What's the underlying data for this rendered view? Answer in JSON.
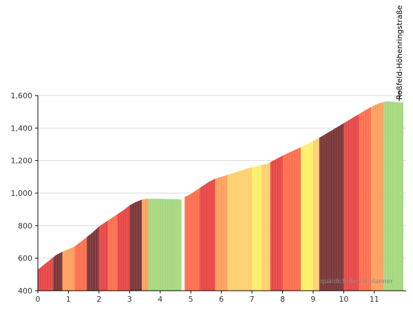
{
  "chart_data": {
    "type": "area",
    "title": "",
    "xlabel": "",
    "ylabel": "",
    "xlim": [
      0,
      12
    ],
    "ylim": [
      400,
      1600
    ],
    "x_ticks": [
      0,
      1,
      2,
      3,
      4,
      5,
      6,
      7,
      8,
      9,
      10,
      11
    ],
    "x_tick_labels": [
      "0",
      "1",
      "2",
      "3",
      "4",
      "5",
      "6",
      "7",
      "8",
      "9",
      "10",
      "11"
    ],
    "y_ticks": [
      400,
      600,
      800,
      1000,
      1200,
      1400,
      1600
    ],
    "y_tick_labels": [
      "400",
      "600",
      "800",
      "1,000",
      "1,200",
      "1,400",
      "1,600"
    ],
    "grid": "horizontal",
    "profile": {
      "x": [
        0.0,
        0.2,
        0.4,
        0.6,
        0.8,
        1.0,
        1.2,
        1.4,
        1.6,
        1.8,
        2.0,
        2.2,
        2.4,
        2.6,
        2.8,
        3.0,
        3.2,
        3.4,
        3.55,
        3.6,
        4.0,
        4.4,
        4.6,
        4.75,
        4.8,
        5.0,
        5.2,
        5.4,
        5.6,
        5.8,
        6.0,
        6.5,
        7.0,
        7.5,
        7.6,
        8.0,
        8.4,
        8.8,
        9.0,
        9.2,
        9.6,
        10.0,
        10.4,
        10.8,
        11.0,
        11.2,
        11.4,
        11.6,
        11.8,
        11.95
      ],
      "y": [
        530,
        560,
        590,
        620,
        640,
        655,
        672,
        700,
        730,
        760,
        795,
        820,
        845,
        870,
        895,
        925,
        945,
        960,
        965,
        965,
        965,
        963,
        963,
        958,
        975,
        995,
        1020,
        1045,
        1070,
        1090,
        1100,
        1130,
        1160,
        1180,
        1190,
        1230,
        1265,
        1300,
        1320,
        1340,
        1385,
        1430,
        1475,
        1520,
        1540,
        1555,
        1565,
        1562,
        1558,
        1556
      ]
    },
    "segments": [
      {
        "x": [
          0.0,
          0.5
        ],
        "gradient_class": "very-steep"
      },
      {
        "x": [
          0.5,
          0.8
        ],
        "gradient_class": "extreme"
      },
      {
        "x": [
          0.8,
          1.2
        ],
        "gradient_class": "moderate"
      },
      {
        "x": [
          1.2,
          1.6
        ],
        "gradient_class": "steep"
      },
      {
        "x": [
          1.6,
          2.0
        ],
        "gradient_class": "extreme"
      },
      {
        "x": [
          2.0,
          2.3
        ],
        "gradient_class": "very-steep"
      },
      {
        "x": [
          2.3,
          2.6
        ],
        "gradient_class": "steep"
      },
      {
        "x": [
          2.6,
          3.0
        ],
        "gradient_class": "very-steep"
      },
      {
        "x": [
          3.0,
          3.4
        ],
        "gradient_class": "extreme"
      },
      {
        "x": [
          3.4,
          3.6
        ],
        "gradient_class": "moderate"
      },
      {
        "x": [
          3.6,
          4.7
        ],
        "gradient_class": "flat"
      },
      {
        "x": [
          4.7,
          4.8
        ],
        "gradient_class": "gap"
      },
      {
        "x": [
          4.8,
          5.3
        ],
        "gradient_class": "steep"
      },
      {
        "x": [
          5.3,
          5.8
        ],
        "gradient_class": "very-steep"
      },
      {
        "x": [
          5.8,
          6.2
        ],
        "gradient_class": "moderate"
      },
      {
        "x": [
          6.2,
          7.0
        ],
        "gradient_class": "mild"
      },
      {
        "x": [
          7.0,
          7.3
        ],
        "gradient_class": "gentle"
      },
      {
        "x": [
          7.3,
          7.6
        ],
        "gradient_class": "mild"
      },
      {
        "x": [
          7.6,
          8.0
        ],
        "gradient_class": "very-steep"
      },
      {
        "x": [
          8.0,
          8.6
        ],
        "gradient_class": "steep"
      },
      {
        "x": [
          8.6,
          9.0
        ],
        "gradient_class": "gentle"
      },
      {
        "x": [
          9.0,
          9.2
        ],
        "gradient_class": "mild"
      },
      {
        "x": [
          9.2,
          10.0
        ],
        "gradient_class": "extreme"
      },
      {
        "x": [
          10.0,
          10.5
        ],
        "gradient_class": "very-steep"
      },
      {
        "x": [
          10.5,
          10.9
        ],
        "gradient_class": "steep"
      },
      {
        "x": [
          10.9,
          11.3
        ],
        "gradient_class": "moderate"
      },
      {
        "x": [
          11.3,
          11.95
        ],
        "gradient_class": "flat"
      }
    ],
    "annotations": [
      {
        "text": "Roßfeld-Höhenringstraße",
        "x": 11.95,
        "y": 1565
      }
    ],
    "watermark": "quäldich.de via planner"
  },
  "colors": {
    "flat": "#a8d880",
    "gentle": "#fff06a",
    "mild": "#ffd070",
    "moderate": "#ffa060",
    "steep": "#ff7050",
    "very-steep": "#e84848",
    "extreme": "#7a3838",
    "gap": "#ffffff",
    "axis": "#000000",
    "grid": "#d9d9d9",
    "label": "#333333",
    "watermark": "#8a8a8a"
  }
}
